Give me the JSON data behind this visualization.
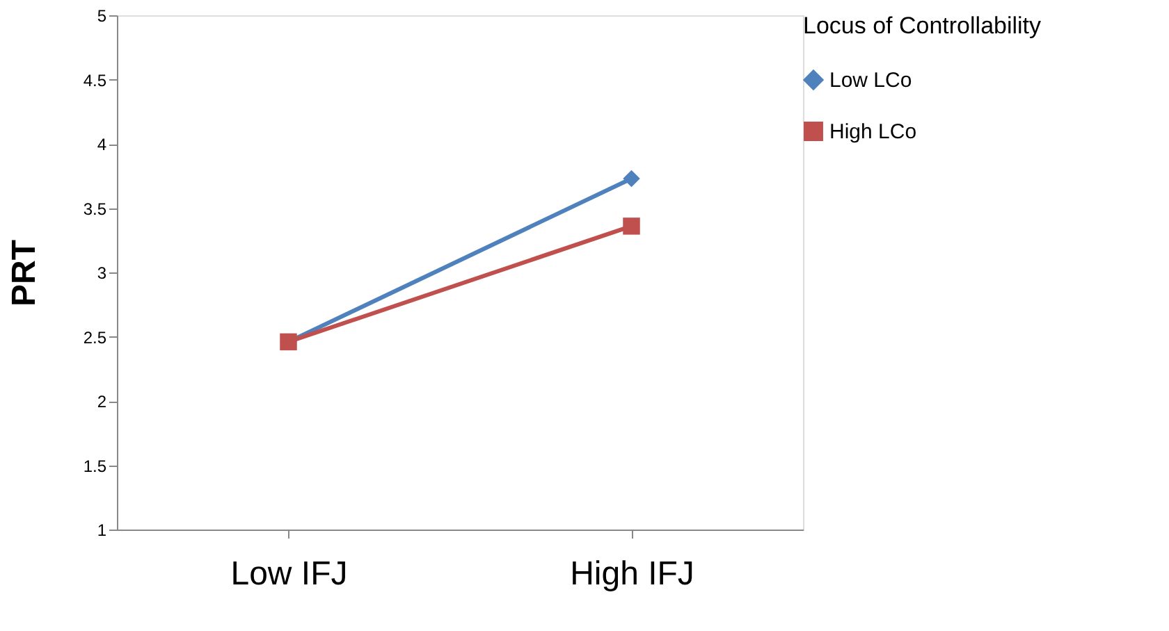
{
  "chart_data": {
    "type": "line",
    "ylabel": "PRT",
    "legend_title": "Locus of Controllability",
    "categories": [
      "Low IFJ",
      "High IFJ"
    ],
    "series": [
      {
        "name": "Low LCo",
        "color": "#4f81bd",
        "values": [
          2.46,
          3.73
        ],
        "marker": "diamond"
      },
      {
        "name": "High LCo",
        "color": "#c0504d",
        "values": [
          2.46,
          3.36
        ],
        "marker": "square"
      }
    ],
    "ylim": [
      1,
      5
    ],
    "yticks": [
      1,
      1.5,
      2,
      2.5,
      3,
      3.5,
      4,
      4.5,
      5
    ],
    "grid": false,
    "legend": "right",
    "line_style": "solid"
  }
}
